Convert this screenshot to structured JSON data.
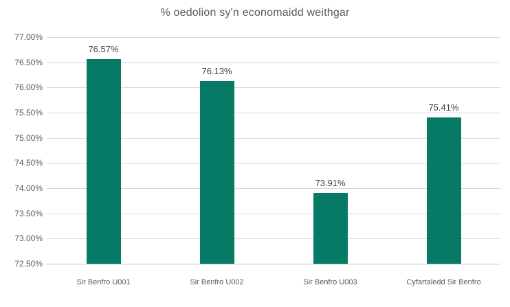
{
  "chart_data": {
    "type": "bar",
    "title": "% oedolion sy'n economaidd weithgar",
    "categories": [
      "Sir Benfro U001",
      "Sir Benfro U002",
      "Sir Benfro U003",
      "Cyfartaledd Sir Benfro"
    ],
    "values": [
      76.57,
      76.13,
      73.91,
      75.41
    ],
    "data_labels": [
      "76.57%",
      "76.13%",
      "73.91%",
      "75.41%"
    ],
    "y_ticks": [
      {
        "value": 77.0,
        "label": "77.00%"
      },
      {
        "value": 76.5,
        "label": "76.50%"
      },
      {
        "value": 76.0,
        "label": "76.00%"
      },
      {
        "value": 75.5,
        "label": "75.50%"
      },
      {
        "value": 75.0,
        "label": "75.00%"
      },
      {
        "value": 74.5,
        "label": "74.50%"
      },
      {
        "value": 74.0,
        "label": "74.00%"
      },
      {
        "value": 73.5,
        "label": "73.50%"
      },
      {
        "value": 73.0,
        "label": "73.00%"
      },
      {
        "value": 72.5,
        "label": "72.50%"
      }
    ],
    "ylim": [
      72.5,
      77.0
    ],
    "xlabel": "",
    "ylabel": "",
    "grid": true,
    "legend": "none",
    "colors": {
      "bar": "#077a65",
      "gridline": "#d9d9d9",
      "axis_line": "#bfbfbf",
      "title_text": "#595959",
      "axis_label_text": "#595959",
      "data_label_text": "#404040",
      "background": "#ffffff"
    }
  }
}
